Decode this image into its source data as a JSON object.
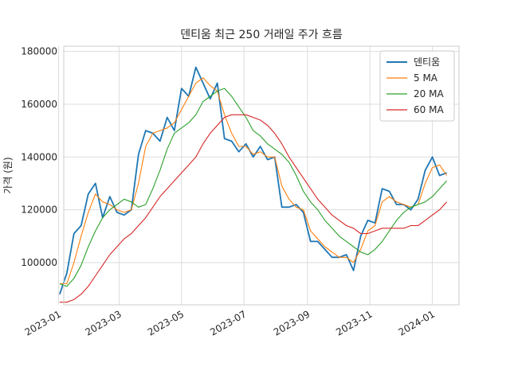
{
  "chart_data": {
    "type": "line",
    "title": "덴티움 최근 250 거래일 주가 흐름",
    "xlabel": "",
    "ylabel": "가격 (원)",
    "xlim": [
      "2023-01-06",
      "2024-01-27"
    ],
    "ylim": [
      84000,
      182000
    ],
    "grid": true,
    "legend_position": "top-right",
    "x_ticks": [
      "2023-01",
      "2023-03",
      "2023-05",
      "2023-07",
      "2023-09",
      "2023-11",
      "2024-01"
    ],
    "y_ticks": [
      "100000",
      "120000",
      "140000",
      "160000",
      "180000"
    ],
    "series": [
      {
        "name": "덴티움",
        "color": "#1f77b4",
        "x": [
          "2023-01-02",
          "2023-01-09",
          "2023-01-16",
          "2023-01-23",
          "2023-01-30",
          "2023-02-06",
          "2023-02-13",
          "2023-02-20",
          "2023-02-27",
          "2023-03-06",
          "2023-03-13",
          "2023-03-20",
          "2023-03-27",
          "2023-04-03",
          "2023-04-10",
          "2023-04-17",
          "2023-04-24",
          "2023-05-01",
          "2023-05-08",
          "2023-05-15",
          "2023-05-22",
          "2023-05-29",
          "2023-06-05",
          "2023-06-12",
          "2023-06-19",
          "2023-06-26",
          "2023-07-03",
          "2023-07-10",
          "2023-07-17",
          "2023-07-24",
          "2023-07-31",
          "2023-08-07",
          "2023-08-14",
          "2023-08-21",
          "2023-08-28",
          "2023-09-04",
          "2023-09-11",
          "2023-09-18",
          "2023-09-25",
          "2023-10-02",
          "2023-10-09",
          "2023-10-16",
          "2023-10-23",
          "2023-10-30",
          "2023-11-06",
          "2023-11-13",
          "2023-11-20",
          "2023-11-27",
          "2023-12-04",
          "2023-12-11",
          "2023-12-18",
          "2023-12-25",
          "2024-01-01",
          "2024-01-08",
          "2024-01-15"
        ],
        "values": [
          88000,
          96000,
          111000,
          114000,
          126000,
          130000,
          117000,
          125000,
          119000,
          118000,
          120000,
          141000,
          150000,
          149000,
          146000,
          155000,
          150000,
          166000,
          163000,
          174000,
          168000,
          162000,
          168000,
          147000,
          146000,
          142000,
          145000,
          140000,
          144000,
          139000,
          140000,
          121000,
          121000,
          122000,
          119000,
          108000,
          108000,
          105000,
          102000,
          102000,
          103000,
          97000,
          110000,
          116000,
          115000,
          128000,
          127000,
          122000,
          122000,
          120000,
          124000,
          135000,
          140000,
          133000,
          134000
        ]
      },
      {
        "name": "5 MA",
        "color": "#ff7f0e",
        "x": [
          "2023-01-02",
          "2023-01-09",
          "2023-01-16",
          "2023-01-23",
          "2023-01-30",
          "2023-02-06",
          "2023-02-13",
          "2023-02-20",
          "2023-02-27",
          "2023-03-06",
          "2023-03-13",
          "2023-03-20",
          "2023-03-27",
          "2023-04-03",
          "2023-04-10",
          "2023-04-17",
          "2023-04-24",
          "2023-05-01",
          "2023-05-08",
          "2023-05-15",
          "2023-05-22",
          "2023-05-29",
          "2023-06-05",
          "2023-06-12",
          "2023-06-19",
          "2023-06-26",
          "2023-07-03",
          "2023-07-10",
          "2023-07-17",
          "2023-07-24",
          "2023-07-31",
          "2023-08-07",
          "2023-08-14",
          "2023-08-21",
          "2023-08-28",
          "2023-09-04",
          "2023-09-11",
          "2023-09-18",
          "2023-09-25",
          "2023-10-02",
          "2023-10-09",
          "2023-10-16",
          "2023-10-23",
          "2023-10-30",
          "2023-11-06",
          "2023-11-13",
          "2023-11-20",
          "2023-11-27",
          "2023-12-04",
          "2023-12-11",
          "2023-12-18",
          "2023-12-25",
          "2024-01-01",
          "2024-01-08",
          "2024-01-15"
        ],
        "values": [
          92000,
          92000,
          100000,
          110000,
          119000,
          126000,
          123000,
          122000,
          120000,
          119000,
          120000,
          130000,
          144000,
          149000,
          150000,
          151000,
          153000,
          158000,
          163000,
          168000,
          170000,
          167000,
          165000,
          156000,
          149000,
          144000,
          144000,
          141000,
          142000,
          140000,
          140000,
          129000,
          124000,
          121000,
          120000,
          112000,
          109000,
          106000,
          104000,
          102000,
          102000,
          100000,
          105000,
          112000,
          114000,
          123000,
          125000,
          123000,
          122000,
          121000,
          122000,
          130000,
          136000,
          137000,
          133000
        ]
      },
      {
        "name": "20 MA",
        "color": "#2ca02c",
        "x": [
          "2023-01-02",
          "2023-01-09",
          "2023-01-16",
          "2023-01-23",
          "2023-01-30",
          "2023-02-06",
          "2023-02-13",
          "2023-02-20",
          "2023-02-27",
          "2023-03-06",
          "2023-03-13",
          "2023-03-20",
          "2023-03-27",
          "2023-04-03",
          "2023-04-10",
          "2023-04-17",
          "2023-04-24",
          "2023-05-01",
          "2023-05-08",
          "2023-05-15",
          "2023-05-22",
          "2023-05-29",
          "2023-06-05",
          "2023-06-12",
          "2023-06-19",
          "2023-06-26",
          "2023-07-03",
          "2023-07-10",
          "2023-07-17",
          "2023-07-24",
          "2023-07-31",
          "2023-08-07",
          "2023-08-14",
          "2023-08-21",
          "2023-08-28",
          "2023-09-04",
          "2023-09-11",
          "2023-09-18",
          "2023-09-25",
          "2023-10-02",
          "2023-10-09",
          "2023-10-16",
          "2023-10-23",
          "2023-10-30",
          "2023-11-06",
          "2023-11-13",
          "2023-11-20",
          "2023-11-27",
          "2023-12-04",
          "2023-12-11",
          "2023-12-18",
          "2023-12-25",
          "2024-01-01",
          "2024-01-08",
          "2024-01-15"
        ],
        "values": [
          92000,
          91000,
          94000,
          99000,
          106000,
          112000,
          117000,
          120000,
          122000,
          124000,
          123000,
          121000,
          122000,
          128000,
          135000,
          143000,
          149000,
          151000,
          153000,
          156000,
          161000,
          163000,
          165000,
          166000,
          163000,
          159000,
          155000,
          150000,
          148000,
          145000,
          143000,
          141000,
          138000,
          133000,
          127000,
          123000,
          120000,
          116000,
          113000,
          110000,
          108000,
          106000,
          104000,
          103000,
          105000,
          108000,
          112000,
          116000,
          119000,
          121000,
          122000,
          123000,
          125000,
          128000,
          131000
        ]
      },
      {
        "name": "60 MA",
        "color": "#d62728",
        "x": [
          "2023-01-02",
          "2023-01-09",
          "2023-01-16",
          "2023-01-23",
          "2023-01-30",
          "2023-02-06",
          "2023-02-13",
          "2023-02-20",
          "2023-02-27",
          "2023-03-06",
          "2023-03-13",
          "2023-03-20",
          "2023-03-27",
          "2023-04-03",
          "2023-04-10",
          "2023-04-17",
          "2023-04-24",
          "2023-05-01",
          "2023-05-08",
          "2023-05-15",
          "2023-05-22",
          "2023-05-29",
          "2023-06-05",
          "2023-06-12",
          "2023-06-19",
          "2023-06-26",
          "2023-07-03",
          "2023-07-10",
          "2023-07-17",
          "2023-07-24",
          "2023-07-31",
          "2023-08-07",
          "2023-08-14",
          "2023-08-21",
          "2023-08-28",
          "2023-09-04",
          "2023-09-11",
          "2023-09-18",
          "2023-09-25",
          "2023-10-02",
          "2023-10-09",
          "2023-10-16",
          "2023-10-23",
          "2023-10-30",
          "2023-11-06",
          "2023-11-13",
          "2023-11-20",
          "2023-11-27",
          "2023-12-04",
          "2023-12-11",
          "2023-12-18",
          "2023-12-25",
          "2024-01-01",
          "2024-01-08",
          "2024-01-15"
        ],
        "values": [
          85000,
          85000,
          86000,
          88000,
          91000,
          95000,
          99000,
          103000,
          106000,
          109000,
          111000,
          114000,
          117000,
          121000,
          125000,
          128000,
          131000,
          134000,
          137000,
          140000,
          145000,
          149000,
          152000,
          155000,
          156000,
          156000,
          156000,
          155000,
          154000,
          152000,
          149000,
          145000,
          140000,
          136000,
          132000,
          128000,
          124000,
          121000,
          118000,
          116000,
          114000,
          113000,
          111000,
          111000,
          112000,
          113000,
          113000,
          113000,
          113000,
          114000,
          114000,
          116000,
          118000,
          120000,
          123000
        ]
      }
    ]
  }
}
